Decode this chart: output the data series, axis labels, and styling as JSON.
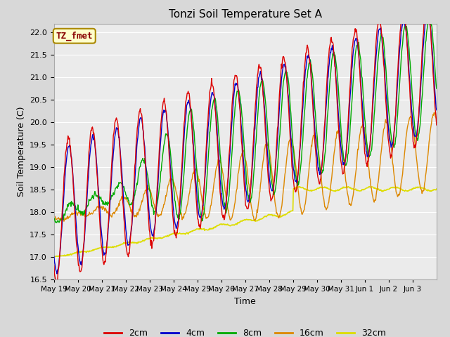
{
  "title": "Tonzi Soil Temperature Set A",
  "xlabel": "Time",
  "ylabel": "Soil Temperature (C)",
  "ylim": [
    16.5,
    22.2
  ],
  "bg_color": "#d8d8d8",
  "plot_bg_color": "#ebebeb",
  "colors": {
    "2cm": "#dd0000",
    "4cm": "#0000cc",
    "8cm": "#00aa00",
    "16cm": "#dd8800",
    "32cm": "#dddd00"
  },
  "legend_label": "TZ_fmet",
  "legend_bg": "#ffffcc",
  "legend_border": "#aa8800",
  "x_tick_labels": [
    "May 19",
    "May 20",
    "May 21",
    "May 22",
    "May 23",
    "May 24",
    "May 25",
    "May 26",
    "May 27",
    "May 28",
    "May 29",
    "May 30",
    "May 31",
    "Jun 1",
    "Jun 2",
    "Jun 3"
  ]
}
